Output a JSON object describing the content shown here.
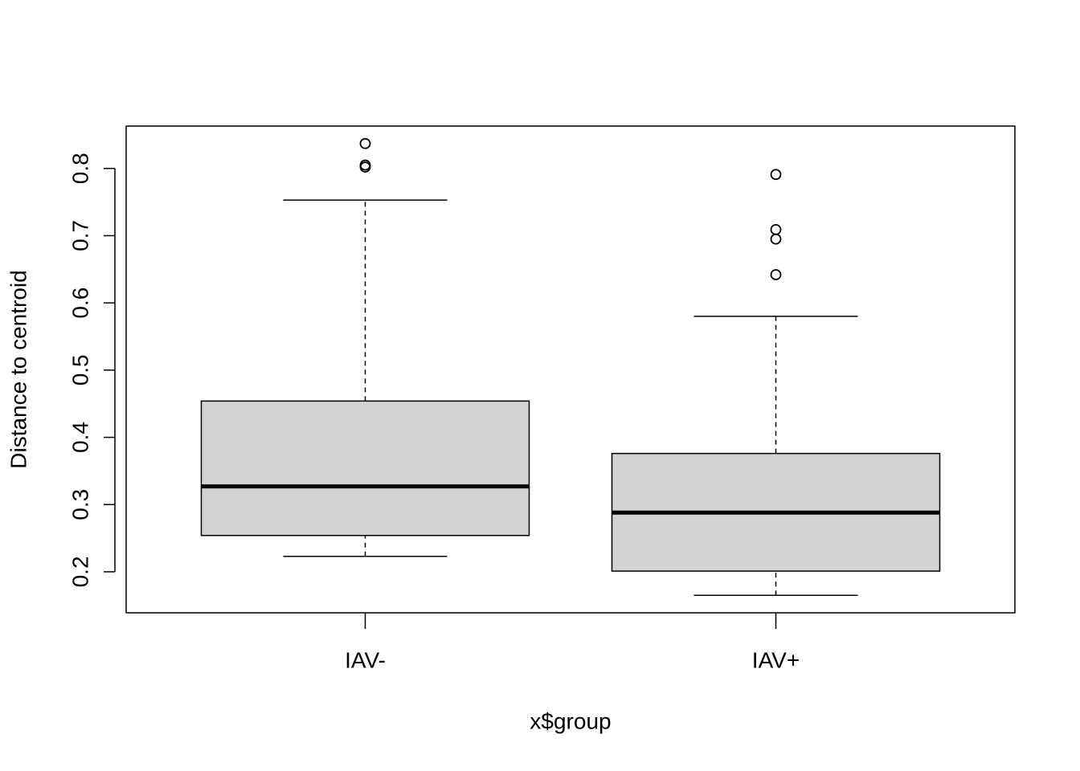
{
  "chart_data": {
    "type": "box",
    "x_label": "x$group",
    "y_label": "Distance to centroid",
    "categories": [
      "IAV-",
      "IAV+"
    ],
    "boxes": [
      {
        "low": 0.223,
        "q1": 0.254,
        "median": 0.327,
        "q3": 0.454,
        "high": 0.753,
        "outliers": [
          0.837,
          0.805,
          0.802
        ]
      },
      {
        "low": 0.165,
        "q1": 0.201,
        "median": 0.288,
        "q3": 0.376,
        "high": 0.58,
        "outliers": [
          0.791,
          0.709,
          0.695,
          0.642
        ]
      }
    ],
    "color": "#d3d3d3",
    "ylim": [
      0.139,
      0.863
    ],
    "yticks": [
      0.2,
      0.3,
      0.4,
      0.5,
      0.6,
      0.7,
      0.8
    ]
  }
}
